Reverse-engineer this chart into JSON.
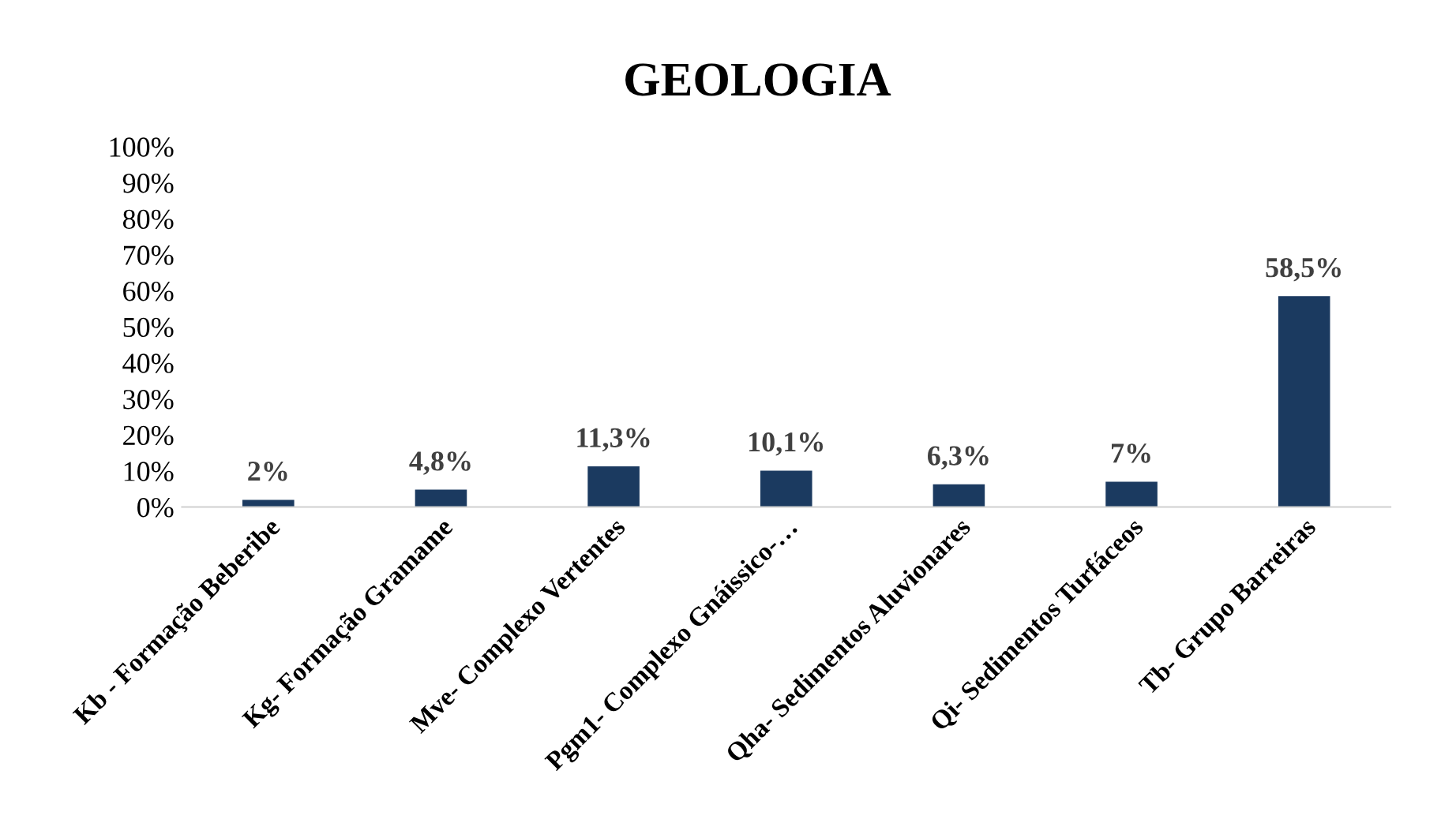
{
  "chart_data": {
    "type": "bar",
    "title": "GEOLOGIA",
    "categories": [
      "Kb - Formação Beberibe",
      "Kg- Formação Gramame",
      "Mve- Complexo Vertentes",
      "Pgm1- Complexo Gnáissico-…",
      "Qha- Sedimentos Aluvionares",
      "Qi- Sedimentos Turfáceos",
      "Tb- Grupo Barreiras"
    ],
    "values": [
      2,
      4.8,
      11.3,
      10.1,
      6.3,
      7,
      58.5
    ],
    "value_labels": [
      "2%",
      "4,8%",
      "11,3%",
      "10,1%",
      "6,3%",
      "7%",
      "58,5%"
    ],
    "color": "#1b3a60",
    "ylim": [
      0,
      100
    ],
    "yticks": [
      {
        "value": 0,
        "label": "0%"
      },
      {
        "value": 10,
        "label": "10%"
      },
      {
        "value": 20,
        "label": "20%"
      },
      {
        "value": 30,
        "label": "30%"
      },
      {
        "value": 40,
        "label": "40%"
      },
      {
        "value": 50,
        "label": "50%"
      },
      {
        "value": 60,
        "label": "60%"
      },
      {
        "value": 70,
        "label": "70%"
      },
      {
        "value": 80,
        "label": "80%"
      },
      {
        "value": 90,
        "label": "90%"
      },
      {
        "value": 100,
        "label": "100%"
      }
    ],
    "grid": false,
    "legend": false
  }
}
